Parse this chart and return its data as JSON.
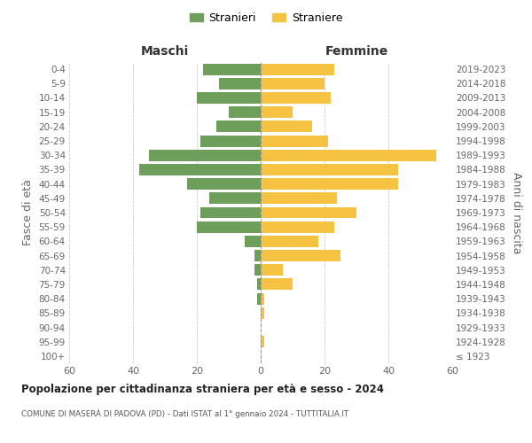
{
  "age_groups": [
    "100+",
    "95-99",
    "90-94",
    "85-89",
    "80-84",
    "75-79",
    "70-74",
    "65-69",
    "60-64",
    "55-59",
    "50-54",
    "45-49",
    "40-44",
    "35-39",
    "30-34",
    "25-29",
    "20-24",
    "15-19",
    "10-14",
    "5-9",
    "0-4"
  ],
  "birth_years": [
    "≤ 1923",
    "1924-1928",
    "1929-1933",
    "1934-1938",
    "1939-1943",
    "1944-1948",
    "1949-1953",
    "1954-1958",
    "1959-1963",
    "1964-1968",
    "1969-1973",
    "1974-1978",
    "1979-1983",
    "1984-1988",
    "1989-1993",
    "1994-1998",
    "1999-2003",
    "2004-2008",
    "2009-2013",
    "2014-2018",
    "2019-2023"
  ],
  "males": [
    0,
    0,
    0,
    0,
    1,
    1,
    2,
    2,
    5,
    20,
    19,
    16,
    23,
    38,
    35,
    19,
    14,
    10,
    20,
    13,
    18
  ],
  "females": [
    0,
    1,
    0,
    1,
    1,
    10,
    7,
    25,
    18,
    23,
    30,
    24,
    43,
    43,
    55,
    21,
    16,
    10,
    22,
    20,
    23
  ],
  "male_color": "#6d9e5a",
  "female_color": "#f5c242",
  "bar_height": 0.8,
  "xlim": 60,
  "title_main": "Popolazione per cittadinanza straniera per età e sesso - 2024",
  "title_sub": "COMUNE DI MASERÀ DI PADOVA (PD) - Dati ISTAT al 1° gennaio 2024 - TUTTITALIA.IT",
  "ylabel_left": "Fasce di età",
  "ylabel_right": "Anni di nascita",
  "xlabel_left": "Maschi",
  "xlabel_right": "Femmine",
  "legend_male": "Stranieri",
  "legend_female": "Straniere",
  "bg_color": "#ffffff",
  "grid_color": "#cccccc",
  "tick_color": "#666666"
}
